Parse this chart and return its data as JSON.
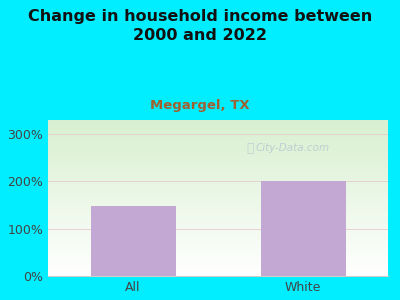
{
  "title": "Change in household income between\n2000 and 2022",
  "subtitle": "Megargel, TX",
  "categories": [
    "All",
    "White"
  ],
  "values": [
    148,
    200
  ],
  "bar_color": "#c4a8d4",
  "title_fontsize": 11.5,
  "subtitle_fontsize": 9.5,
  "subtitle_color": "#a06030",
  "tick_label_fontsize": 9,
  "yticks": [
    0,
    100,
    200,
    300
  ],
  "ylim": [
    0,
    330
  ],
  "background_outer": "#00eeff",
  "grid_color": "#e8d0d0",
  "watermark": "City-Data.com",
  "watermark_color": "#b8c8d0",
  "xlim": [
    -0.5,
    1.5
  ],
  "bar_width": 0.5
}
